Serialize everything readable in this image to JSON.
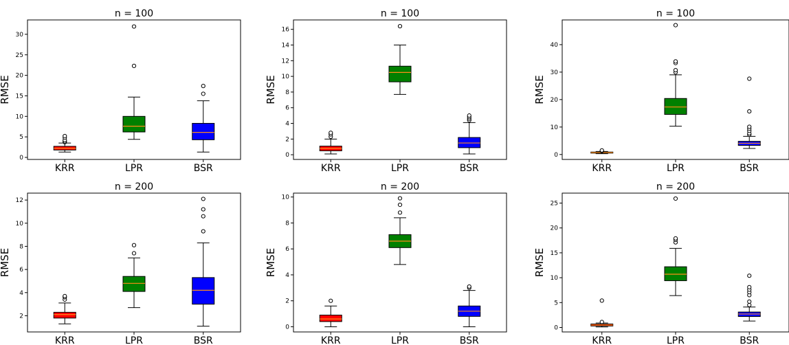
{
  "chart_data": [
    {
      "type": "box",
      "title": "n = 100",
      "ylabel": "RMSE",
      "categories": [
        "KRR",
        "LPR",
        "BSR"
      ],
      "colors": [
        "#ff0000",
        "#008000",
        "#0000ff"
      ],
      "median_color": "#ff8c1a",
      "ylim": [
        -0.5,
        33.5
      ],
      "yticks": [
        0,
        5,
        10,
        15,
        20,
        25,
        30
      ],
      "boxes": [
        {
          "whislo": 1.3,
          "q1": 1.8,
          "med": 2.2,
          "q3": 2.7,
          "whishi": 3.5,
          "fliers": [
            3.7,
            3.9,
            4.2,
            4.8,
            5.2
          ]
        },
        {
          "whislo": 4.4,
          "q1": 6.2,
          "med": 7.6,
          "q3": 10.0,
          "whishi": 14.7,
          "fliers": [
            22.3,
            31.9
          ]
        },
        {
          "whislo": 1.3,
          "q1": 4.3,
          "med": 6.1,
          "q3": 8.3,
          "whishi": 13.8,
          "fliers": [
            15.5,
            17.4
          ]
        }
      ]
    },
    {
      "type": "box",
      "title": "n = 100",
      "ylabel": "RMSE",
      "categories": [
        "KRR",
        "LPR",
        "BSR"
      ],
      "colors": [
        "#ff0000",
        "#008000",
        "#0000ff"
      ],
      "median_color": "#ff8c1a",
      "ylim": [
        -0.6,
        17.2
      ],
      "yticks": [
        0,
        2,
        4,
        6,
        8,
        10,
        12,
        14,
        16
      ],
      "boxes": [
        {
          "whislo": 0.1,
          "q1": 0.5,
          "med": 0.8,
          "q3": 1.1,
          "whishi": 2.0,
          "fliers": [
            2.3,
            2.6,
            2.8
          ]
        },
        {
          "whislo": 7.7,
          "q1": 9.3,
          "med": 10.5,
          "q3": 11.3,
          "whishi": 14.0,
          "fliers": [
            16.4
          ]
        },
        {
          "whislo": 0.1,
          "q1": 0.9,
          "med": 1.5,
          "q3": 2.2,
          "whishi": 4.1,
          "fliers": [
            4.4,
            4.6,
            4.8,
            5.0
          ]
        }
      ]
    },
    {
      "type": "box",
      "title": "n = 100",
      "ylabel": "RMSE",
      "categories": [
        "KRR",
        "LPR",
        "BSR"
      ],
      "colors": [
        "#ff0000",
        "#008000",
        "#0000ff"
      ],
      "median_color": "#ff8c1a",
      "ylim": [
        -1.8,
        49.0
      ],
      "yticks": [
        0,
        10,
        20,
        30,
        40
      ],
      "boxes": [
        {
          "whislo": 0.3,
          "q1": 0.5,
          "med": 0.7,
          "q3": 0.9,
          "whishi": 1.1,
          "fliers": [
            1.3,
            1.5
          ]
        },
        {
          "whislo": 10.3,
          "q1": 14.6,
          "med": 17.3,
          "q3": 20.4,
          "whishi": 29.0,
          "fliers": [
            29.9,
            30.7,
            33.3,
            33.9,
            47.1
          ]
        },
        {
          "whislo": 2.2,
          "q1": 3.3,
          "med": 4.1,
          "q3": 4.8,
          "whishi": 6.6,
          "fliers": [
            7.2,
            7.7,
            8.6,
            9.4,
            10.1,
            15.7,
            27.6
          ]
        }
      ]
    },
    {
      "type": "box",
      "title": "n = 200",
      "ylabel": "RMSE",
      "categories": [
        "KRR",
        "LPR",
        "BSR"
      ],
      "colors": [
        "#ff0000",
        "#008000",
        "#0000ff"
      ],
      "median_color": "#ff8c1a",
      "ylim": [
        0.6,
        12.6
      ],
      "yticks": [
        2,
        4,
        6,
        8,
        10,
        12
      ],
      "boxes": [
        {
          "whislo": 1.3,
          "q1": 1.8,
          "med": 2.1,
          "q3": 2.3,
          "whishi": 3.1,
          "fliers": [
            3.4,
            3.6,
            3.7
          ]
        },
        {
          "whislo": 2.7,
          "q1": 4.1,
          "med": 4.8,
          "q3": 5.4,
          "whishi": 7.0,
          "fliers": [
            7.4,
            8.1
          ]
        },
        {
          "whislo": 1.1,
          "q1": 3.0,
          "med": 4.2,
          "q3": 5.3,
          "whishi": 8.3,
          "fliers": [
            9.3,
            10.6,
            11.2,
            12.1
          ]
        }
      ]
    },
    {
      "type": "box",
      "title": "n = 200",
      "ylabel": "RMSE",
      "categories": [
        "KRR",
        "LPR",
        "BSR"
      ],
      "colors": [
        "#ff0000",
        "#008000",
        "#0000ff"
      ],
      "median_color": "#ff8c1a",
      "ylim": [
        -0.4,
        10.3
      ],
      "yticks": [
        0,
        2,
        4,
        6,
        8,
        10
      ],
      "boxes": [
        {
          "whislo": 0.0,
          "q1": 0.4,
          "med": 0.6,
          "q3": 0.9,
          "whishi": 1.6,
          "fliers": [
            2.0
          ]
        },
        {
          "whislo": 4.8,
          "q1": 6.1,
          "med": 6.6,
          "q3": 7.1,
          "whishi": 8.4,
          "fliers": [
            8.8,
            9.4,
            9.9
          ]
        },
        {
          "whislo": 0.0,
          "q1": 0.8,
          "med": 1.2,
          "q3": 1.6,
          "whishi": 2.8,
          "fliers": [
            3.0,
            3.1
          ]
        }
      ]
    },
    {
      "type": "box",
      "title": "n = 200",
      "ylabel": "RMSE",
      "categories": [
        "KRR",
        "LPR",
        "BSR"
      ],
      "colors": [
        "#ff0000",
        "#008000",
        "#0000ff"
      ],
      "median_color": "#ff8c1a",
      "ylim": [
        -0.9,
        27.0
      ],
      "yticks": [
        0,
        5,
        10,
        15,
        20,
        25
      ],
      "boxes": [
        {
          "whislo": 0.1,
          "q1": 0.3,
          "med": 0.5,
          "q3": 0.7,
          "whishi": 0.9,
          "fliers": [
            1.1,
            5.4
          ]
        },
        {
          "whislo": 6.4,
          "q1": 9.4,
          "med": 10.7,
          "q3": 12.2,
          "whishi": 15.9,
          "fliers": [
            17.1,
            17.6,
            17.9,
            25.9
          ]
        },
        {
          "whislo": 1.3,
          "q1": 2.2,
          "med": 2.7,
          "q3": 3.1,
          "whishi": 4.1,
          "fliers": [
            4.5,
            5.2,
            6.5,
            7.1,
            7.6,
            8.1,
            10.4
          ]
        }
      ]
    }
  ]
}
